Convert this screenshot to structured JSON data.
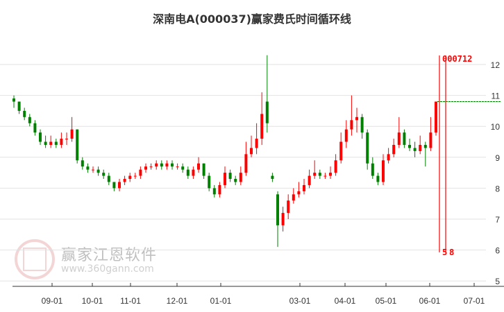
{
  "chart_data": {
    "type": "candlestick",
    "title": "深南电A(000037)赢家费氏时间循环线",
    "ylim": [
      5,
      12.5
    ],
    "yticks": [
      5,
      6,
      7,
      8,
      9,
      10,
      11,
      12
    ],
    "xticks": [
      "09-01",
      "10-01",
      "11-01",
      "12-01",
      "01-01",
      "03-01",
      "04-01",
      "05-01",
      "06-01",
      "07-01"
    ],
    "grid": true,
    "up_color": "#ff0000",
    "down_color": "#008000",
    "candles": [
      [
        10.9,
        11.0,
        10.6,
        10.8
      ],
      [
        10.8,
        10.8,
        10.4,
        10.5
      ],
      [
        10.5,
        10.6,
        10.2,
        10.3
      ],
      [
        10.3,
        10.4,
        10.0,
        10.1
      ],
      [
        10.1,
        10.2,
        9.7,
        9.8
      ],
      [
        9.8,
        9.9,
        9.4,
        9.5
      ],
      [
        9.5,
        9.7,
        9.3,
        9.4
      ],
      [
        9.4,
        9.7,
        9.3,
        9.5
      ],
      [
        9.5,
        9.6,
        9.3,
        9.4
      ],
      [
        9.4,
        9.8,
        9.3,
        9.6
      ],
      [
        9.6,
        9.8,
        9.4,
        9.6
      ],
      [
        9.6,
        10.3,
        9.5,
        9.9
      ],
      [
        9.9,
        9.9,
        8.8,
        8.9
      ],
      [
        8.9,
        9.0,
        8.6,
        8.7
      ],
      [
        8.7,
        8.8,
        8.5,
        8.6
      ],
      [
        8.6,
        8.7,
        8.5,
        8.6
      ],
      [
        8.6,
        8.7,
        8.4,
        8.5
      ],
      [
        8.5,
        8.6,
        8.3,
        8.4
      ],
      [
        8.4,
        8.5,
        8.1,
        8.2
      ],
      [
        8.2,
        8.2,
        7.9,
        8.0
      ],
      [
        8.0,
        8.3,
        7.9,
        8.2
      ],
      [
        8.2,
        8.4,
        8.1,
        8.3
      ],
      [
        8.3,
        8.5,
        8.2,
        8.4
      ],
      [
        8.4,
        8.5,
        8.3,
        8.4
      ],
      [
        8.4,
        8.7,
        8.3,
        8.6
      ],
      [
        8.6,
        8.8,
        8.5,
        8.7
      ],
      [
        8.7,
        8.8,
        8.6,
        8.7
      ],
      [
        8.7,
        8.9,
        8.6,
        8.8
      ],
      [
        8.8,
        8.9,
        8.6,
        8.7
      ],
      [
        8.7,
        8.9,
        8.6,
        8.8
      ],
      [
        8.8,
        8.9,
        8.6,
        8.7
      ],
      [
        8.7,
        8.8,
        8.6,
        8.7
      ],
      [
        8.7,
        8.8,
        8.5,
        8.6
      ],
      [
        8.6,
        8.7,
        8.3,
        8.4
      ],
      [
        8.4,
        8.7,
        8.3,
        8.6
      ],
      [
        8.6,
        9.0,
        8.5,
        8.8
      ],
      [
        8.8,
        8.8,
        8.3,
        8.4
      ],
      [
        8.4,
        8.5,
        7.9,
        8.0
      ],
      [
        8.0,
        8.1,
        7.7,
        7.8
      ],
      [
        7.8,
        8.2,
        7.7,
        8.1
      ],
      [
        8.1,
        8.7,
        8.0,
        8.5
      ],
      [
        8.5,
        8.6,
        8.2,
        8.3
      ],
      [
        8.3,
        8.4,
        8.1,
        8.2
      ],
      [
        8.2,
        8.7,
        8.1,
        8.5
      ],
      [
        8.5,
        9.5,
        8.4,
        9.1
      ],
      [
        9.1,
        9.7,
        9.0,
        9.3
      ],
      [
        9.3,
        10.1,
        9.1,
        9.6
      ],
      [
        9.6,
        11.1,
        9.4,
        10.4
      ],
      [
        10.8,
        12.3,
        9.8,
        10.1
      ],
      [
        8.4,
        8.5,
        8.2,
        8.3
      ],
      [
        7.8,
        7.9,
        6.1,
        6.8
      ],
      [
        6.8,
        7.4,
        6.6,
        7.2
      ],
      [
        7.2,
        7.8,
        7.0,
        7.6
      ],
      [
        7.6,
        8.0,
        7.5,
        7.8
      ],
      [
        7.8,
        8.2,
        7.7,
        7.9
      ],
      [
        7.9,
        8.3,
        7.8,
        8.1
      ],
      [
        8.1,
        8.6,
        8.0,
        8.4
      ],
      [
        8.4,
        8.9,
        8.3,
        8.5
      ],
      [
        8.5,
        8.6,
        8.3,
        8.4
      ],
      [
        8.4,
        8.5,
        8.3,
        8.4
      ],
      [
        8.4,
        8.7,
        8.3,
        8.5
      ],
      [
        8.5,
        9.1,
        8.4,
        8.9
      ],
      [
        8.9,
        9.8,
        8.8,
        9.5
      ],
      [
        9.5,
        10.2,
        9.3,
        9.9
      ],
      [
        9.9,
        11.0,
        9.7,
        10.2
      ],
      [
        10.2,
        10.6,
        9.8,
        10.3
      ],
      [
        10.3,
        10.4,
        9.6,
        9.8
      ],
      [
        9.8,
        9.9,
        8.6,
        8.8
      ],
      [
        8.8,
        9.0,
        8.3,
        8.4
      ],
      [
        8.4,
        8.5,
        8.1,
        8.2
      ],
      [
        8.2,
        9.1,
        8.1,
        8.9
      ],
      [
        8.9,
        9.3,
        8.8,
        9.1
      ],
      [
        9.1,
        9.6,
        9.0,
        9.4
      ],
      [
        9.4,
        10.3,
        9.3,
        9.8
      ],
      [
        9.8,
        9.9,
        9.3,
        9.4
      ],
      [
        9.4,
        9.6,
        9.2,
        9.3
      ],
      [
        9.3,
        9.5,
        9.0,
        9.2
      ],
      [
        9.2,
        9.7,
        9.1,
        9.4
      ],
      [
        9.4,
        9.5,
        8.7,
        9.3
      ],
      [
        9.3,
        10.3,
        9.2,
        9.8
      ],
      [
        9.8,
        10.8,
        9.7,
        10.8
      ]
    ],
    "reference_line": {
      "value": 10.8,
      "color": "#008000",
      "style": "dashed"
    },
    "cycle_lines": {
      "color": "#ff0000",
      "top_labels": "000712",
      "bottom_labels": [
        "5",
        "8"
      ]
    }
  },
  "watermark": {
    "name": "赢家江恩软件",
    "url": "www.360gann.com",
    "seal": "江赢恩家"
  }
}
